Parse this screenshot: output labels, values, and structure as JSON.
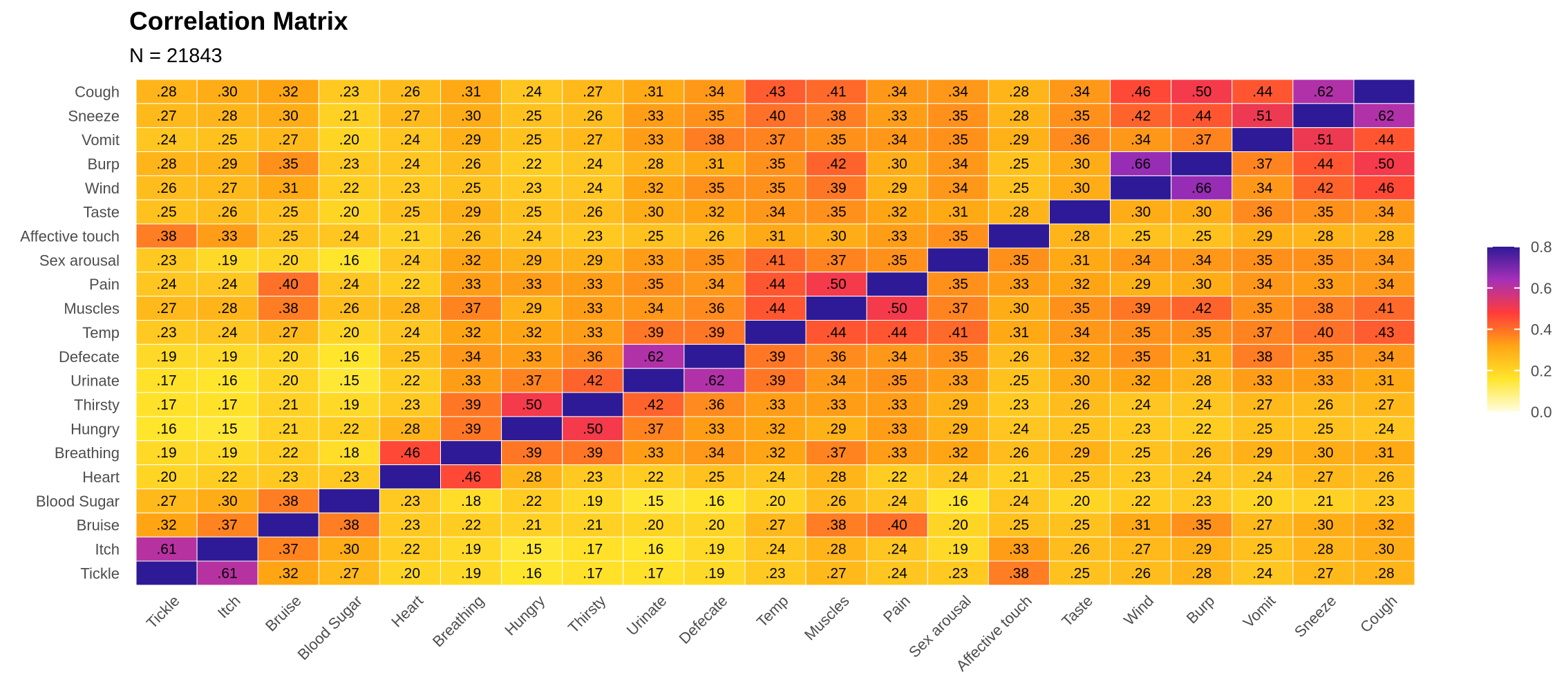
{
  "chart_data": {
    "type": "heatmap",
    "title": "Correlation Matrix",
    "subtitle": "N = 21843",
    "x_categories": [
      "Tickle",
      "Itch",
      "Bruise",
      "Blood Sugar",
      "Heart",
      "Breathing",
      "Hungry",
      "Thirsty",
      "Urinate",
      "Defecate",
      "Temp",
      "Muscles",
      "Pain",
      "Sex arousal",
      "Affective touch",
      "Taste",
      "Wind",
      "Burp",
      "Vomit",
      "Sneeze",
      "Cough"
    ],
    "y_categories_top_to_bottom": [
      "Cough",
      "Sneeze",
      "Vomit",
      "Burp",
      "Wind",
      "Taste",
      "Affective touch",
      "Sex arousal",
      "Pain",
      "Muscles",
      "Temp",
      "Defecate",
      "Urinate",
      "Thirsty",
      "Hungry",
      "Breathing",
      "Heart",
      "Blood Sugar",
      "Bruise",
      "Itch",
      "Tickle"
    ],
    "values": [
      [
        0.28,
        0.3,
        0.32,
        0.23,
        0.26,
        0.31,
        0.24,
        0.27,
        0.31,
        0.34,
        0.43,
        0.41,
        0.34,
        0.34,
        0.28,
        0.34,
        0.46,
        0.5,
        0.44,
        0.62,
        1.0
      ],
      [
        0.27,
        0.28,
        0.3,
        0.21,
        0.27,
        0.3,
        0.25,
        0.26,
        0.33,
        0.35,
        0.4,
        0.38,
        0.33,
        0.35,
        0.28,
        0.35,
        0.42,
        0.44,
        0.51,
        1.0,
        0.62
      ],
      [
        0.24,
        0.25,
        0.27,
        0.2,
        0.24,
        0.29,
        0.25,
        0.27,
        0.33,
        0.38,
        0.37,
        0.35,
        0.34,
        0.35,
        0.29,
        0.36,
        0.34,
        0.37,
        1.0,
        0.51,
        0.44
      ],
      [
        0.28,
        0.29,
        0.35,
        0.23,
        0.24,
        0.26,
        0.22,
        0.24,
        0.28,
        0.31,
        0.35,
        0.42,
        0.3,
        0.34,
        0.25,
        0.3,
        0.66,
        1.0,
        0.37,
        0.44,
        0.5
      ],
      [
        0.26,
        0.27,
        0.31,
        0.22,
        0.23,
        0.25,
        0.23,
        0.24,
        0.32,
        0.35,
        0.35,
        0.39,
        0.29,
        0.34,
        0.25,
        0.3,
        1.0,
        0.66,
        0.34,
        0.42,
        0.46
      ],
      [
        0.25,
        0.26,
        0.25,
        0.2,
        0.25,
        0.29,
        0.25,
        0.26,
        0.3,
        0.32,
        0.34,
        0.35,
        0.32,
        0.31,
        0.28,
        1.0,
        0.3,
        0.3,
        0.36,
        0.35,
        0.34
      ],
      [
        0.38,
        0.33,
        0.25,
        0.24,
        0.21,
        0.26,
        0.24,
        0.23,
        0.25,
        0.26,
        0.31,
        0.3,
        0.33,
        0.35,
        1.0,
        0.28,
        0.25,
        0.25,
        0.29,
        0.28,
        0.28
      ],
      [
        0.23,
        0.19,
        0.2,
        0.16,
        0.24,
        0.32,
        0.29,
        0.29,
        0.33,
        0.35,
        0.41,
        0.37,
        0.35,
        1.0,
        0.35,
        0.31,
        0.34,
        0.34,
        0.35,
        0.35,
        0.34
      ],
      [
        0.24,
        0.24,
        0.4,
        0.24,
        0.22,
        0.33,
        0.33,
        0.33,
        0.35,
        0.34,
        0.44,
        0.5,
        1.0,
        0.35,
        0.33,
        0.32,
        0.29,
        0.3,
        0.34,
        0.33,
        0.34
      ],
      [
        0.27,
        0.28,
        0.38,
        0.26,
        0.28,
        0.37,
        0.29,
        0.33,
        0.34,
        0.36,
        0.44,
        1.0,
        0.5,
        0.37,
        0.3,
        0.35,
        0.39,
        0.42,
        0.35,
        0.38,
        0.41
      ],
      [
        0.23,
        0.24,
        0.27,
        0.2,
        0.24,
        0.32,
        0.32,
        0.33,
        0.39,
        0.39,
        1.0,
        0.44,
        0.44,
        0.41,
        0.31,
        0.34,
        0.35,
        0.35,
        0.37,
        0.4,
        0.43
      ],
      [
        0.19,
        0.19,
        0.2,
        0.16,
        0.25,
        0.34,
        0.33,
        0.36,
        0.62,
        1.0,
        0.39,
        0.36,
        0.34,
        0.35,
        0.26,
        0.32,
        0.35,
        0.31,
        0.38,
        0.35,
        0.34
      ],
      [
        0.17,
        0.16,
        0.2,
        0.15,
        0.22,
        0.33,
        0.37,
        0.42,
        1.0,
        0.62,
        0.39,
        0.34,
        0.35,
        0.33,
        0.25,
        0.3,
        0.32,
        0.28,
        0.33,
        0.33,
        0.31
      ],
      [
        0.17,
        0.17,
        0.21,
        0.19,
        0.23,
        0.39,
        0.5,
        1.0,
        0.42,
        0.36,
        0.33,
        0.33,
        0.33,
        0.29,
        0.23,
        0.26,
        0.24,
        0.24,
        0.27,
        0.26,
        0.27
      ],
      [
        0.16,
        0.15,
        0.21,
        0.22,
        0.28,
        0.39,
        1.0,
        0.5,
        0.37,
        0.33,
        0.32,
        0.29,
        0.33,
        0.29,
        0.24,
        0.25,
        0.23,
        0.22,
        0.25,
        0.25,
        0.24
      ],
      [
        0.19,
        0.19,
        0.22,
        0.18,
        0.46,
        1.0,
        0.39,
        0.39,
        0.33,
        0.34,
        0.32,
        0.37,
        0.33,
        0.32,
        0.26,
        0.29,
        0.25,
        0.26,
        0.29,
        0.3,
        0.31
      ],
      [
        0.2,
        0.22,
        0.23,
        0.23,
        1.0,
        0.46,
        0.28,
        0.23,
        0.22,
        0.25,
        0.24,
        0.28,
        0.22,
        0.24,
        0.21,
        0.25,
        0.23,
        0.24,
        0.24,
        0.27,
        0.26
      ],
      [
        0.27,
        0.3,
        0.38,
        1.0,
        0.23,
        0.18,
        0.22,
        0.19,
        0.15,
        0.16,
        0.2,
        0.26,
        0.24,
        0.16,
        0.24,
        0.2,
        0.22,
        0.23,
        0.2,
        0.21,
        0.23
      ],
      [
        0.32,
        0.37,
        1.0,
        0.38,
        0.23,
        0.22,
        0.21,
        0.21,
        0.2,
        0.2,
        0.27,
        0.38,
        0.4,
        0.2,
        0.25,
        0.25,
        0.31,
        0.35,
        0.27,
        0.3,
        0.32
      ],
      [
        0.61,
        1.0,
        0.37,
        0.3,
        0.22,
        0.19,
        0.15,
        0.17,
        0.16,
        0.19,
        0.24,
        0.28,
        0.24,
        0.19,
        0.33,
        0.26,
        0.27,
        0.29,
        0.25,
        0.28,
        0.3
      ],
      [
        1.0,
        0.61,
        0.32,
        0.27,
        0.2,
        0.19,
        0.16,
        0.17,
        0.17,
        0.19,
        0.23,
        0.27,
        0.24,
        0.23,
        0.38,
        0.25,
        0.26,
        0.28,
        0.24,
        0.27,
        0.28
      ]
    ],
    "diagonal_labeled": false,
    "scale_limits": [
      0,
      0.8
    ],
    "legend": {
      "position": "right",
      "ticks": [
        "0.0",
        "0.2",
        "0.4",
        "0.6",
        "0.8"
      ],
      "colors": [
        "#fffde0",
        "#ffe52b",
        "#ffa514",
        "#ff3b3b",
        "#a630b8",
        "#2e1a96"
      ]
    },
    "grid": false
  }
}
